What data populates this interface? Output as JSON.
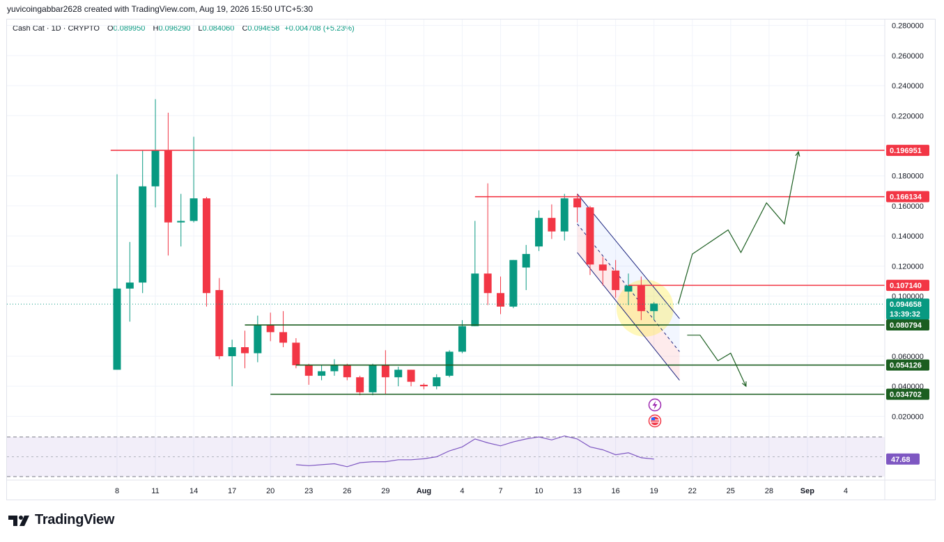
{
  "caption": "yuvicoingabbar2628 created with TradingView.com, Aug 19, 2026 15:50 UTC+5:30",
  "legend": {
    "symbol": "Cash Cat · 1D · CRYPTO",
    "open_label": "O",
    "open": "0.089950",
    "high_label": "H",
    "high": "0.096290",
    "low_label": "L",
    "low": "0.084060",
    "close_label": "C",
    "close": "0.094658",
    "change": "+0.004708 (+5.23%)"
  },
  "brand": {
    "name": "TradingView",
    "logo_icon": "tradingview-logo-icon"
  },
  "colors": {
    "up": "#089981",
    "down": "#f23645",
    "resistance": "#f23645",
    "support": "#1b5e20",
    "rsi": "#7e57c2",
    "channel": "#1a237e"
  },
  "chart_data": {
    "type": "candlestick",
    "ylim": [
      0.01,
      0.284
    ],
    "y_ticks": [
      "0.280000",
      "0.260000",
      "0.240000",
      "0.220000",
      "0.180000",
      "0.160000",
      "0.140000",
      "0.120000",
      "0.100000",
      "0.060000",
      "0.040000",
      "0.020000"
    ],
    "x_ticks": [
      "8",
      "11",
      "14",
      "17",
      "20",
      "23",
      "26",
      "29",
      "Aug",
      "4",
      "7",
      "10",
      "13",
      "16",
      "19",
      "22",
      "25",
      "28",
      "Sep",
      "4"
    ],
    "first_day_index": 8,
    "candles": [
      {
        "day": 8,
        "o": 0.051,
        "h": 0.181,
        "l": 0.051,
        "c": 0.105
      },
      {
        "day": 9,
        "o": 0.105,
        "h": 0.136,
        "l": 0.083,
        "c": 0.109
      },
      {
        "day": 10,
        "o": 0.109,
        "h": 0.197,
        "l": 0.102,
        "c": 0.173
      },
      {
        "day": 11,
        "o": 0.173,
        "h": 0.231,
        "l": 0.159,
        "c": 0.197
      },
      {
        "day": 12,
        "o": 0.197,
        "h": 0.222,
        "l": 0.127,
        "c": 0.149
      },
      {
        "day": 13,
        "o": 0.149,
        "h": 0.168,
        "l": 0.133,
        "c": 0.15
      },
      {
        "day": 14,
        "o": 0.15,
        "h": 0.206,
        "l": 0.149,
        "c": 0.165
      },
      {
        "day": 15,
        "o": 0.165,
        "h": 0.166,
        "l": 0.093,
        "c": 0.102
      },
      {
        "day": 16,
        "o": 0.104,
        "h": 0.112,
        "l": 0.058,
        "c": 0.06
      },
      {
        "day": 17,
        "o": 0.06,
        "h": 0.071,
        "l": 0.04,
        "c": 0.066
      },
      {
        "day": 18,
        "o": 0.066,
        "h": 0.077,
        "l": 0.052,
        "c": 0.062
      },
      {
        "day": 19,
        "o": 0.062,
        "h": 0.087,
        "l": 0.056,
        "c": 0.081
      },
      {
        "day": 20,
        "o": 0.081,
        "h": 0.089,
        "l": 0.07,
        "c": 0.076
      },
      {
        "day": 21,
        "o": 0.076,
        "h": 0.09,
        "l": 0.066,
        "c": 0.069
      },
      {
        "day": 22,
        "o": 0.069,
        "h": 0.072,
        "l": 0.052,
        "c": 0.054
      },
      {
        "day": 23,
        "o": 0.054,
        "h": 0.055,
        "l": 0.041,
        "c": 0.047
      },
      {
        "day": 24,
        "o": 0.047,
        "h": 0.054,
        "l": 0.044,
        "c": 0.05
      },
      {
        "day": 25,
        "o": 0.05,
        "h": 0.058,
        "l": 0.047,
        "c": 0.054
      },
      {
        "day": 26,
        "o": 0.054,
        "h": 0.055,
        "l": 0.044,
        "c": 0.046
      },
      {
        "day": 27,
        "o": 0.046,
        "h": 0.047,
        "l": 0.034,
        "c": 0.036
      },
      {
        "day": 28,
        "o": 0.036,
        "h": 0.055,
        "l": 0.034,
        "c": 0.054
      },
      {
        "day": 29,
        "o": 0.054,
        "h": 0.064,
        "l": 0.035,
        "c": 0.046
      },
      {
        "day": 30,
        "o": 0.046,
        "h": 0.053,
        "l": 0.04,
        "c": 0.051
      },
      {
        "day": 31,
        "o": 0.051,
        "h": 0.051,
        "l": 0.04,
        "c": 0.043
      },
      {
        "day": 32,
        "o": 0.041,
        "h": 0.042,
        "l": 0.038,
        "c": 0.04
      },
      {
        "day": 33,
        "o": 0.04,
        "h": 0.048,
        "l": 0.038,
        "c": 0.046
      },
      {
        "day": 34,
        "o": 0.047,
        "h": 0.064,
        "l": 0.046,
        "c": 0.063
      },
      {
        "day": 35,
        "o": 0.063,
        "h": 0.084,
        "l": 0.062,
        "c": 0.08
      },
      {
        "day": 36,
        "o": 0.08,
        "h": 0.15,
        "l": 0.08,
        "c": 0.115
      },
      {
        "day": 37,
        "o": 0.115,
        "h": 0.175,
        "l": 0.094,
        "c": 0.102
      },
      {
        "day": 38,
        "o": 0.102,
        "h": 0.113,
        "l": 0.088,
        "c": 0.093
      },
      {
        "day": 39,
        "o": 0.093,
        "h": 0.124,
        "l": 0.092,
        "c": 0.124
      },
      {
        "day": 40,
        "o": 0.119,
        "h": 0.134,
        "l": 0.104,
        "c": 0.128
      },
      {
        "day": 41,
        "o": 0.133,
        "h": 0.157,
        "l": 0.13,
        "c": 0.152
      },
      {
        "day": 42,
        "o": 0.152,
        "h": 0.161,
        "l": 0.138,
        "c": 0.143
      },
      {
        "day": 43,
        "o": 0.143,
        "h": 0.168,
        "l": 0.137,
        "c": 0.165
      },
      {
        "day": 44,
        "o": 0.165,
        "h": 0.168,
        "l": 0.149,
        "c": 0.159
      },
      {
        "day": 45,
        "o": 0.159,
        "h": 0.16,
        "l": 0.114,
        "c": 0.121
      },
      {
        "day": 46,
        "o": 0.121,
        "h": 0.126,
        "l": 0.107,
        "c": 0.117
      },
      {
        "day": 47,
        "o": 0.117,
        "h": 0.124,
        "l": 0.099,
        "c": 0.104
      },
      {
        "day": 48,
        "o": 0.103,
        "h": 0.115,
        "l": 0.094,
        "c": 0.107
      },
      {
        "day": 49,
        "o": 0.107,
        "h": 0.113,
        "l": 0.084,
        "c": 0.09
      },
      {
        "day": 50,
        "o": 0.09,
        "h": 0.096,
        "l": 0.084,
        "c": 0.095
      }
    ],
    "levels": [
      {
        "price": 0.196951,
        "label": "0.196951",
        "kind": "resistance",
        "from_day": 7.5
      },
      {
        "price": 0.166134,
        "label": "0.166134",
        "kind": "resistance",
        "from_day": 36
      },
      {
        "price": 0.10714,
        "label": "0.107140",
        "kind": "resistance",
        "from_day": 51
      },
      {
        "price": 0.080794,
        "label": "0.080794",
        "kind": "support",
        "from_day": 18
      },
      {
        "price": 0.054126,
        "label": "0.054126",
        "kind": "support",
        "from_day": 22
      },
      {
        "price": 0.034702,
        "label": "0.034702",
        "kind": "support",
        "from_day": 20
      }
    ],
    "last_price": {
      "price": 0.094658,
      "label": "0.094658",
      "countdown": "13:39:32"
    },
    "channel": {
      "upper": [
        [
          44,
          0.168
        ],
        [
          52,
          0.085
        ]
      ],
      "lower": [
        [
          44,
          0.129
        ],
        [
          52,
          0.044
        ]
      ],
      "mid": [
        [
          44,
          0.148
        ],
        [
          52,
          0.063
        ]
      ]
    },
    "bull_path": [
      [
        51.9,
        0.095
      ],
      [
        53,
        0.128
      ],
      [
        55.8,
        0.144
      ],
      [
        56.8,
        0.129
      ],
      [
        58.8,
        0.162
      ],
      [
        60.2,
        0.148
      ],
      [
        61.3,
        0.196
      ]
    ],
    "bear_path": [
      [
        52.6,
        0.074
      ],
      [
        53.6,
        0.074
      ],
      [
        55,
        0.057
      ],
      [
        56,
        0.062
      ],
      [
        57.2,
        0.04
      ]
    ],
    "rsi": {
      "value": "47.68",
      "upper_band": 70,
      "lower_band": 30,
      "values": [
        [
          22,
          42
        ],
        [
          23,
          41
        ],
        [
          24,
          42
        ],
        [
          25,
          43
        ],
        [
          26,
          40
        ],
        [
          27,
          44
        ],
        [
          28,
          45
        ],
        [
          29,
          45
        ],
        [
          30,
          47
        ],
        [
          31,
          47
        ],
        [
          32,
          48
        ],
        [
          33,
          50
        ],
        [
          34,
          56
        ],
        [
          35,
          60
        ],
        [
          36,
          68
        ],
        [
          37,
          64
        ],
        [
          38,
          61
        ],
        [
          39,
          65
        ],
        [
          40,
          68
        ],
        [
          41,
          70
        ],
        [
          42,
          67
        ],
        [
          43,
          71
        ],
        [
          44,
          68
        ],
        [
          45,
          60
        ],
        [
          46,
          57
        ],
        [
          47,
          52
        ],
        [
          48,
          54
        ],
        [
          49,
          49
        ],
        [
          50,
          47.68
        ]
      ]
    }
  }
}
